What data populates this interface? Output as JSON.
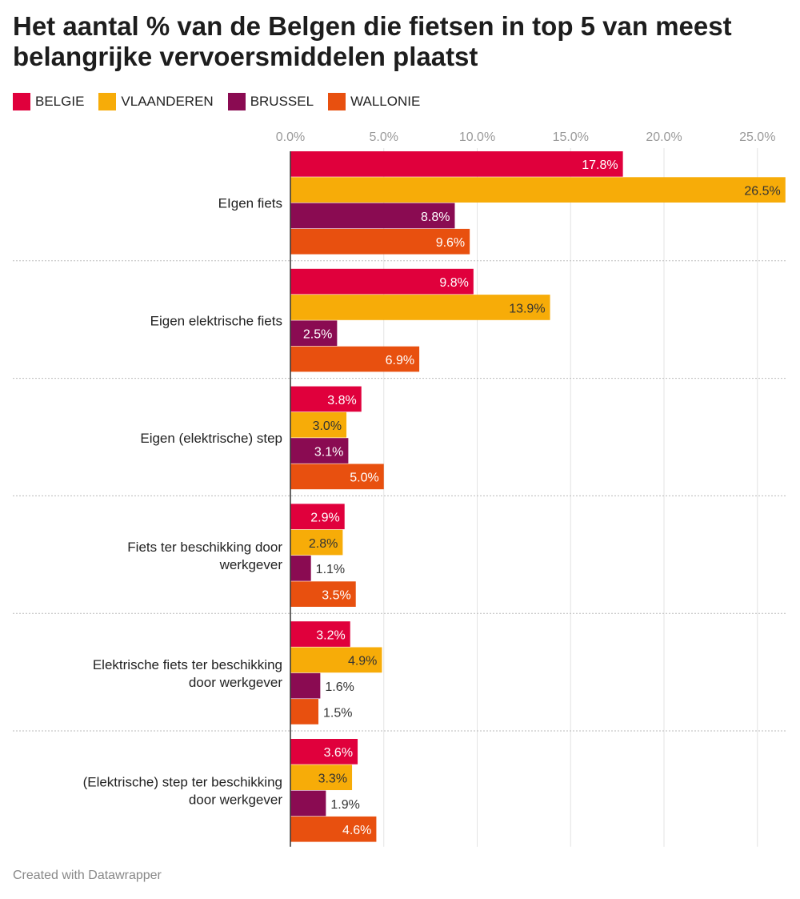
{
  "title": "Het aantal % van de Belgen die fietsen in top 5 van meest belangrijke vervoersmiddelen plaatst",
  "footer": "Created with Datawrapper",
  "chart_data": {
    "type": "bar",
    "orientation": "horizontal",
    "title": "Het aantal % van de Belgen die fietsen in top 5 van meest belangrijke vervoersmiddelen plaatst",
    "legend_position": "top-left",
    "grid": true,
    "xlim": [
      0,
      26.5
    ],
    "ticks": [
      "0.0%",
      "5.0%",
      "10.0%",
      "15.0%",
      "20.0%",
      "25.0%"
    ],
    "tick_values": [
      0,
      5,
      10,
      15,
      20,
      25
    ],
    "categories": [
      "EIgen fiets",
      "Eigen elektrische fiets",
      "Eigen (elektrische) step",
      "Fiets ter beschikking door werkgever",
      "Elektrische fiets ter beschikking door werkgever",
      "(Elektrische) step ter beschikking door werkgever"
    ],
    "series": [
      {
        "name": "BELGIE",
        "color": "#e0003c",
        "values": [
          17.8,
          9.8,
          3.8,
          2.9,
          3.2,
          3.6
        ]
      },
      {
        "name": "VLAANDEREN",
        "color": "#f7ac08",
        "values": [
          26.5,
          13.9,
          3.0,
          2.8,
          4.9,
          3.3
        ]
      },
      {
        "name": "BRUSSEL",
        "color": "#8a0b52",
        "values": [
          8.8,
          2.5,
          3.1,
          1.1,
          1.6,
          1.9
        ]
      },
      {
        "name": "WALLONIE",
        "color": "#e8500f",
        "values": [
          9.6,
          6.9,
          5.0,
          3.5,
          1.5,
          4.6
        ]
      }
    ]
  }
}
